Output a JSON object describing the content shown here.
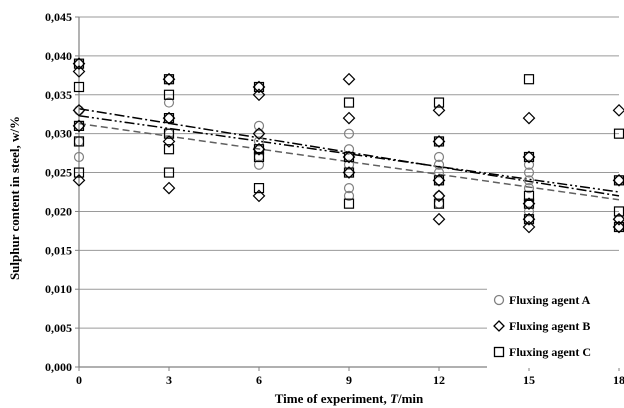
{
  "chart_data": {
    "type": "scatter",
    "xlabel_prefix": "Time of experiment, ",
    "xlabel_var": "T",
    "xlabel_suffix": "/min",
    "ylabel": "Sulphur content in steel, w/%",
    "xlim": [
      0,
      18
    ],
    "ylim": [
      0,
      0.045
    ],
    "x_ticks": [
      0,
      3,
      6,
      9,
      12,
      15,
      18
    ],
    "y_ticks": [
      0,
      0.005,
      0.01,
      0.015,
      0.02,
      0.025,
      0.03,
      0.035,
      0.04,
      0.045
    ],
    "x_tick_labels": [
      "0",
      "3",
      "6",
      "9",
      "12",
      "15",
      "18"
    ],
    "y_tick_labels": [
      "0,000",
      "0,005",
      "0,010",
      "0,015",
      "0,020",
      "0,025",
      "0,030",
      "0,035",
      "0,040",
      "0,045"
    ],
    "grid": "horizontal",
    "legend_position": "bottom-right",
    "series": [
      {
        "name": "Fluxing agent A",
        "marker": "circle",
        "color": "#808080",
        "points": [
          [
            0,
            0.039
          ],
          [
            0,
            0.033
          ],
          [
            0,
            0.031
          ],
          [
            0,
            0.029
          ],
          [
            0,
            0.027
          ],
          [
            3,
            0.037
          ],
          [
            3,
            0.034
          ],
          [
            3,
            0.032
          ],
          [
            3,
            0.03
          ],
          [
            6,
            0.036
          ],
          [
            6,
            0.031
          ],
          [
            6,
            0.03
          ],
          [
            6,
            0.029
          ],
          [
            6,
            0.028
          ],
          [
            6,
            0.027
          ],
          [
            6,
            0.026
          ],
          [
            9,
            0.03
          ],
          [
            9,
            0.028
          ],
          [
            9,
            0.027
          ],
          [
            9,
            0.026
          ],
          [
            9,
            0.025
          ],
          [
            9,
            0.023
          ],
          [
            9,
            0.022
          ],
          [
            12,
            0.029
          ],
          [
            12,
            0.027
          ],
          [
            12,
            0.026
          ],
          [
            12,
            0.025
          ],
          [
            12,
            0.024
          ],
          [
            12,
            0.022
          ],
          [
            12,
            0.021
          ],
          [
            15,
            0.027
          ],
          [
            15,
            0.026
          ],
          [
            15,
            0.025
          ],
          [
            15,
            0.024
          ],
          [
            15,
            0.023
          ],
          [
            15,
            0.021
          ],
          [
            15,
            0.02
          ],
          [
            15,
            0.019
          ],
          [
            18,
            0.024
          ],
          [
            18,
            0.019
          ],
          [
            18,
            0.018
          ]
        ]
      },
      {
        "name": "Fluxing agent B",
        "marker": "diamond",
        "color": "#000000",
        "points": [
          [
            0,
            0.039
          ],
          [
            0,
            0.038
          ],
          [
            0,
            0.033
          ],
          [
            0,
            0.031
          ],
          [
            0,
            0.024
          ],
          [
            3,
            0.037
          ],
          [
            3,
            0.032
          ],
          [
            3,
            0.029
          ],
          [
            3,
            0.023
          ],
          [
            6,
            0.036
          ],
          [
            6,
            0.035
          ],
          [
            6,
            0.03
          ],
          [
            6,
            0.028
          ],
          [
            6,
            0.022
          ],
          [
            9,
            0.037
          ],
          [
            9,
            0.032
          ],
          [
            9,
            0.027
          ],
          [
            9,
            0.025
          ],
          [
            12,
            0.033
          ],
          [
            12,
            0.029
          ],
          [
            12,
            0.024
          ],
          [
            12,
            0.022
          ],
          [
            12,
            0.019
          ],
          [
            15,
            0.032
          ],
          [
            15,
            0.027
          ],
          [
            15,
            0.021
          ],
          [
            15,
            0.019
          ],
          [
            15,
            0.018
          ],
          [
            18,
            0.033
          ],
          [
            18,
            0.024
          ],
          [
            18,
            0.019
          ],
          [
            18,
            0.018
          ]
        ]
      },
      {
        "name": "Fluxing agent C",
        "marker": "square",
        "color": "#000000",
        "points": [
          [
            0,
            0.039
          ],
          [
            0,
            0.036
          ],
          [
            0,
            0.031
          ],
          [
            0,
            0.029
          ],
          [
            0,
            0.025
          ],
          [
            3,
            0.037
          ],
          [
            3,
            0.035
          ],
          [
            3,
            0.032
          ],
          [
            3,
            0.03
          ],
          [
            3,
            0.028
          ],
          [
            3,
            0.025
          ],
          [
            6,
            0.036
          ],
          [
            6,
            0.028
          ],
          [
            6,
            0.027
          ],
          [
            6,
            0.023
          ],
          [
            9,
            0.034
          ],
          [
            9,
            0.027
          ],
          [
            9,
            0.025
          ],
          [
            9,
            0.021
          ],
          [
            12,
            0.034
          ],
          [
            12,
            0.029
          ],
          [
            12,
            0.024
          ],
          [
            12,
            0.021
          ],
          [
            15,
            0.037
          ],
          [
            15,
            0.027
          ],
          [
            15,
            0.022
          ],
          [
            15,
            0.021
          ],
          [
            15,
            0.019
          ],
          [
            18,
            0.03
          ],
          [
            18,
            0.024
          ],
          [
            18,
            0.02
          ],
          [
            18,
            0.018
          ]
        ]
      }
    ],
    "trendlines": [
      {
        "series": "Fluxing agent A",
        "style": "dashed",
        "color": "#606060",
        "x": [
          0,
          18
        ],
        "y": [
          0.0313,
          0.0215
        ]
      },
      {
        "series": "Fluxing agent B",
        "style": "dash-dot",
        "color": "#000000",
        "x": [
          0,
          18
        ],
        "y": [
          0.0332,
          0.022
        ]
      },
      {
        "series": "Fluxing agent C",
        "style": "dash-dot-dot",
        "color": "#000000",
        "x": [
          0,
          18
        ],
        "y": [
          0.0323,
          0.0225
        ]
      }
    ]
  }
}
